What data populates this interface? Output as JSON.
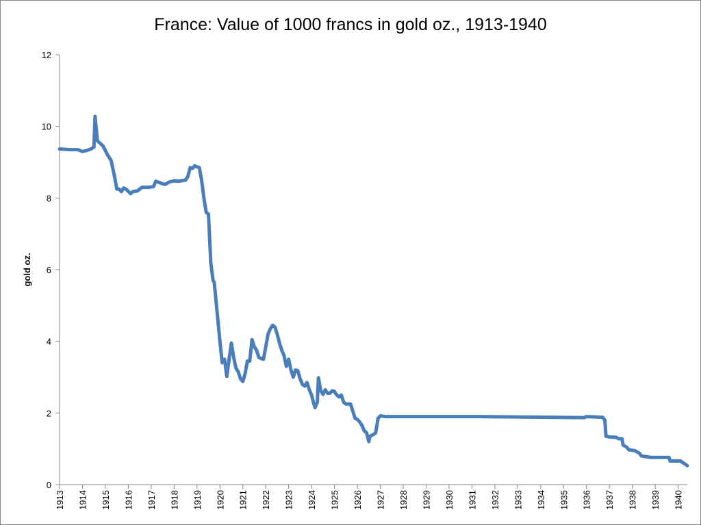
{
  "chart_data": {
    "type": "line",
    "title": "France: Value of 1000 francs in gold oz., 1913-1940",
    "y_label": "gold oz.",
    "xlim": [
      1913,
      1940.4
    ],
    "xticks": [
      1913,
      1914,
      1915,
      1916,
      1917,
      1918,
      1919,
      1920,
      1921,
      1922,
      1923,
      1924,
      1925,
      1926,
      1927,
      1928,
      1929,
      1930,
      1931,
      1932,
      1933,
      1934,
      1935,
      1936,
      1937,
      1938,
      1939,
      1940
    ],
    "ylim": [
      0,
      12
    ],
    "yticks": [
      0,
      2,
      4,
      6,
      8,
      10,
      12
    ],
    "grid": false,
    "series": [
      {
        "name": "gold oz.",
        "color": "#4a7ebb",
        "x": [
          1913.0,
          1913.5,
          1913.8,
          1914.0,
          1914.2,
          1914.4,
          1914.5,
          1914.55,
          1914.65,
          1914.9,
          1915.1,
          1915.25,
          1915.4,
          1915.5,
          1915.6,
          1915.7,
          1915.8,
          1915.9,
          1916.1,
          1916.2,
          1916.4,
          1916.6,
          1916.9,
          1917.1,
          1917.2,
          1917.4,
          1917.6,
          1917.8,
          1918.0,
          1918.2,
          1918.5,
          1918.6,
          1918.7,
          1918.8,
          1918.9,
          1919.0,
          1919.1,
          1919.2,
          1919.3,
          1919.4,
          1919.5,
          1919.6,
          1919.7,
          1919.75,
          1919.85,
          1920.0,
          1920.1,
          1920.2,
          1920.3,
          1920.4,
          1920.5,
          1920.6,
          1920.7,
          1920.8,
          1920.9,
          1921.0,
          1921.1,
          1921.2,
          1921.3,
          1921.4,
          1921.5,
          1921.6,
          1921.7,
          1921.8,
          1921.9,
          1922.0,
          1922.1,
          1922.2,
          1922.3,
          1922.4,
          1922.5,
          1922.6,
          1922.7,
          1922.8,
          1922.9,
          1923.0,
          1923.1,
          1923.2,
          1923.3,
          1923.4,
          1923.5,
          1923.6,
          1923.7,
          1923.8,
          1923.9,
          1924.0,
          1924.1,
          1924.15,
          1924.25,
          1924.3,
          1924.4,
          1924.5,
          1924.6,
          1924.7,
          1924.8,
          1924.9,
          1925.0,
          1925.1,
          1925.2,
          1925.3,
          1925.4,
          1925.5,
          1925.7,
          1925.8,
          1925.9,
          1926.0,
          1926.1,
          1926.2,
          1926.3,
          1926.4,
          1926.5,
          1926.55,
          1926.7,
          1926.8,
          1926.9,
          1927.0,
          1927.2,
          1928.0,
          1930.0,
          1931.3,
          1935.9,
          1936.0,
          1936.7,
          1936.8,
          1936.85,
          1937.0,
          1937.3,
          1937.4,
          1937.55,
          1937.6,
          1937.75,
          1937.85,
          1938.1,
          1938.3,
          1938.4,
          1938.8,
          1939.0,
          1939.6,
          1939.65,
          1940.1,
          1940.4
        ],
        "values": [
          9.37,
          9.35,
          9.35,
          9.3,
          9.33,
          9.38,
          9.42,
          10.28,
          9.6,
          9.45,
          9.2,
          9.05,
          8.6,
          8.25,
          8.25,
          8.18,
          8.28,
          8.25,
          8.12,
          8.18,
          8.2,
          8.3,
          8.3,
          8.32,
          8.47,
          8.42,
          8.38,
          8.45,
          8.48,
          8.47,
          8.5,
          8.6,
          8.85,
          8.83,
          8.9,
          8.87,
          8.85,
          8.5,
          8.0,
          7.6,
          7.55,
          6.2,
          5.7,
          5.65,
          5.0,
          4.0,
          3.4,
          3.5,
          3.02,
          3.5,
          3.95,
          3.55,
          3.25,
          3.15,
          2.95,
          2.88,
          3.1,
          3.45,
          3.45,
          4.05,
          3.85,
          3.75,
          3.55,
          3.52,
          3.5,
          3.85,
          4.2,
          4.35,
          4.45,
          4.4,
          4.2,
          3.95,
          3.75,
          3.6,
          3.3,
          3.5,
          3.2,
          3.0,
          3.2,
          3.18,
          2.95,
          2.8,
          2.75,
          2.85,
          2.65,
          2.5,
          2.25,
          2.15,
          2.3,
          2.98,
          2.62,
          2.52,
          2.65,
          2.55,
          2.55,
          2.62,
          2.6,
          2.5,
          2.45,
          2.5,
          2.3,
          2.25,
          2.25,
          2.05,
          1.85,
          1.82,
          1.75,
          1.65,
          1.5,
          1.45,
          1.2,
          1.35,
          1.4,
          1.45,
          1.85,
          1.92,
          1.9,
          1.9,
          1.9,
          1.9,
          1.87,
          1.9,
          1.88,
          1.8,
          1.35,
          1.33,
          1.32,
          1.28,
          1.28,
          1.1,
          1.05,
          0.97,
          0.95,
          0.88,
          0.8,
          0.76,
          0.76,
          0.76,
          0.66,
          0.66,
          0.53
        ]
      }
    ]
  }
}
